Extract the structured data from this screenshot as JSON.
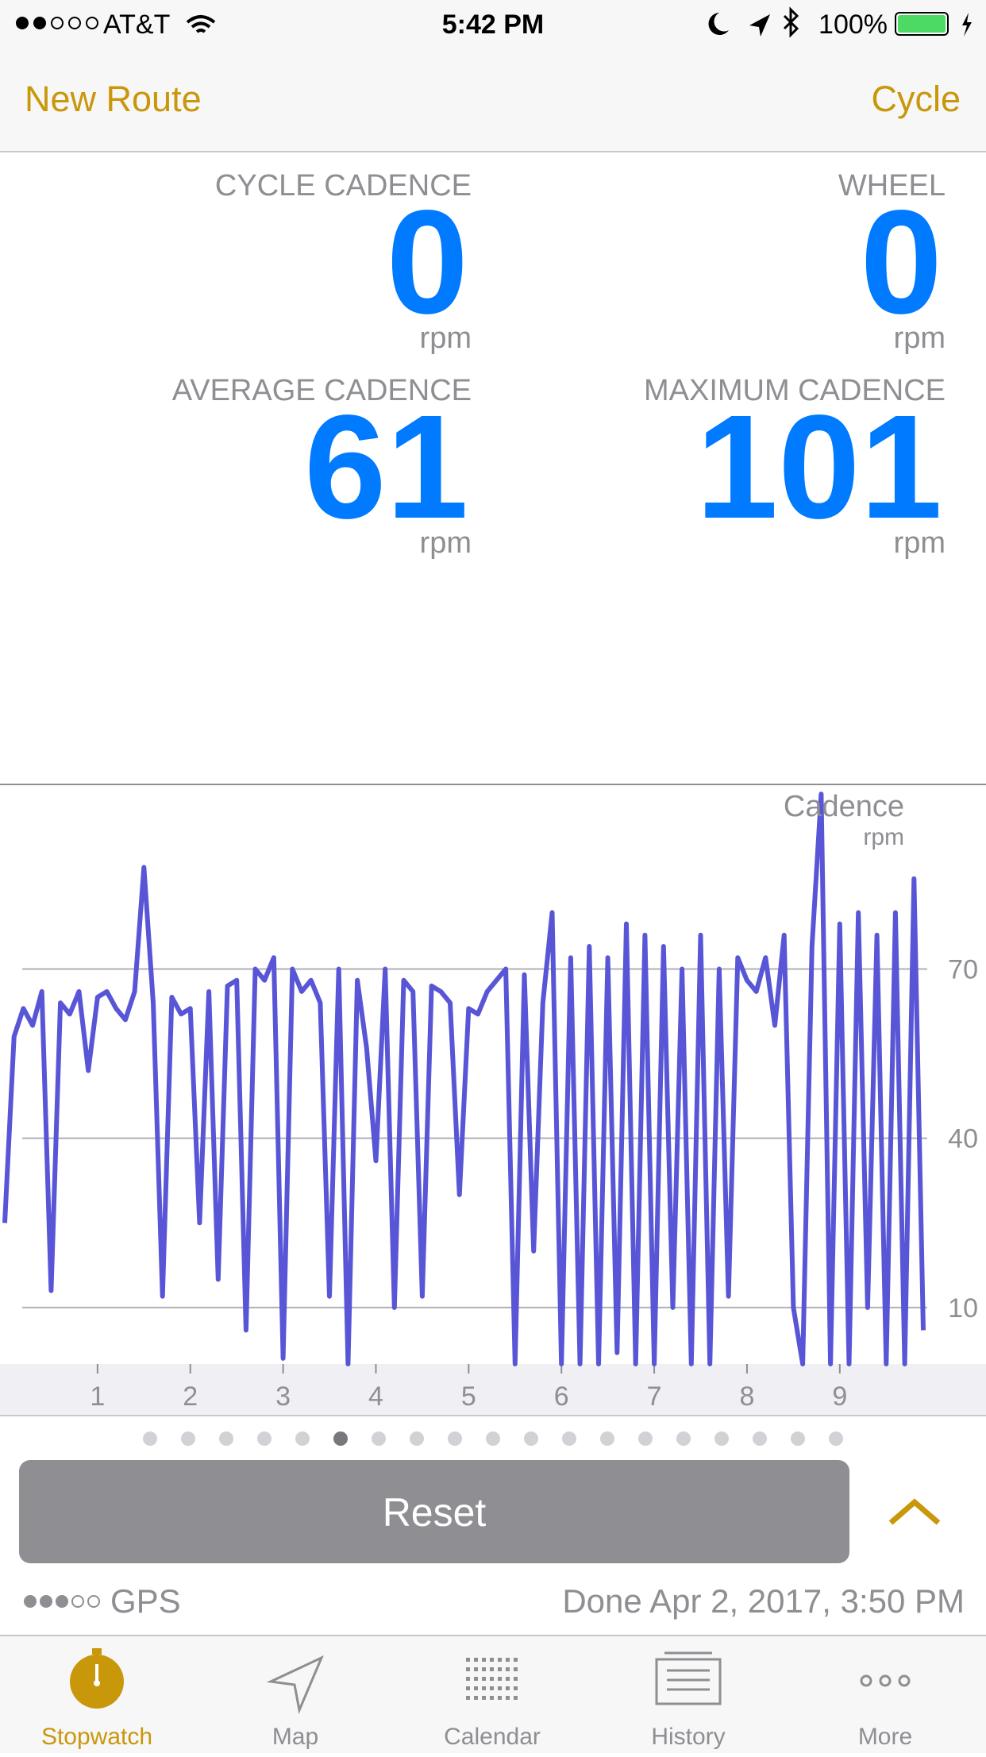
{
  "status_bar": {
    "carrier": "AT&T",
    "time": "5:42 PM",
    "battery": "100%"
  },
  "nav": {
    "left": "New Route",
    "right": "Cycle"
  },
  "metrics": [
    {
      "label": "CYCLE CADENCE",
      "value": 0,
      "unit": "rpm"
    },
    {
      "label": "WHEEL",
      "value": 0,
      "unit": "rpm"
    },
    {
      "label": "AVERAGE CADENCE",
      "value": 61,
      "unit": "rpm"
    },
    {
      "label": "MAXIMUM CADENCE",
      "value": 101,
      "unit": "rpm"
    }
  ],
  "chart_data": {
    "type": "line",
    "title": "Cadence",
    "subtitle": "rpm",
    "x": [
      0.0,
      0.1,
      0.2,
      0.3,
      0.4,
      0.5,
      0.6,
      0.7,
      0.8,
      0.9,
      1.0,
      1.1,
      1.2,
      1.3,
      1.4,
      1.5,
      1.6,
      1.7,
      1.8,
      1.9,
      2.0,
      2.1,
      2.2,
      2.3,
      2.4,
      2.5,
      2.6,
      2.7,
      2.8,
      2.9,
      3.0,
      3.1,
      3.2,
      3.3,
      3.4,
      3.5,
      3.6,
      3.7,
      3.8,
      3.9,
      4.0,
      4.1,
      4.2,
      4.3,
      4.4,
      4.5,
      4.6,
      4.7,
      4.8,
      4.9,
      5.0,
      5.1,
      5.2,
      5.3,
      5.4,
      5.5,
      5.6,
      5.7,
      5.8,
      5.9,
      6.0,
      6.1,
      6.2,
      6.3,
      6.4,
      6.5,
      6.6,
      6.7,
      6.8,
      6.9,
      7.0,
      7.1,
      7.2,
      7.3,
      7.4,
      7.5,
      7.6,
      7.7,
      7.8,
      7.9,
      8.0,
      8.1,
      8.2,
      8.3,
      8.4,
      8.5,
      8.6,
      8.7,
      8.8,
      8.9,
      9.0,
      9.1,
      9.2,
      9.3,
      9.4,
      9.5,
      9.6,
      9.7,
      9.8,
      9.9
    ],
    "series": [
      {
        "color": "#5856d6",
        "values": [
          25,
          58,
          63,
          60,
          66,
          13,
          64,
          62,
          66,
          52,
          65,
          66,
          63,
          61,
          66,
          88,
          64,
          12,
          65,
          62,
          63,
          25,
          66,
          15,
          67,
          68,
          6,
          70,
          68,
          72,
          1,
          70,
          66,
          68,
          64,
          12,
          70,
          0,
          68,
          56,
          36,
          70,
          10,
          68,
          66,
          12,
          67,
          66,
          64,
          30,
          63,
          62,
          66,
          68,
          70,
          0,
          69,
          20,
          64,
          80,
          0,
          72,
          0,
          74,
          0,
          72,
          2,
          78,
          0,
          76,
          0,
          74,
          10,
          70,
          0,
          76,
          0,
          70,
          12,
          72,
          68,
          66,
          72,
          60,
          76,
          10,
          0,
          74,
          101,
          0,
          78,
          0,
          80,
          10,
          76,
          0,
          80,
          0,
          86,
          6
        ]
      }
    ],
    "xlim": [
      0,
      9.9
    ],
    "ylim": [
      0,
      102
    ],
    "xticks": [
      1,
      2,
      3,
      4,
      5,
      6,
      7,
      8,
      9
    ],
    "yticks": [
      10,
      40,
      70
    ],
    "grid": true
  },
  "gps": {
    "label": "GPS",
    "status": "Done Apr 2, 2017, 3:50 PM"
  },
  "button": "Reset",
  "tabs": [
    "Stopwatch",
    "Map",
    "Calendar",
    "History",
    "More"
  ]
}
